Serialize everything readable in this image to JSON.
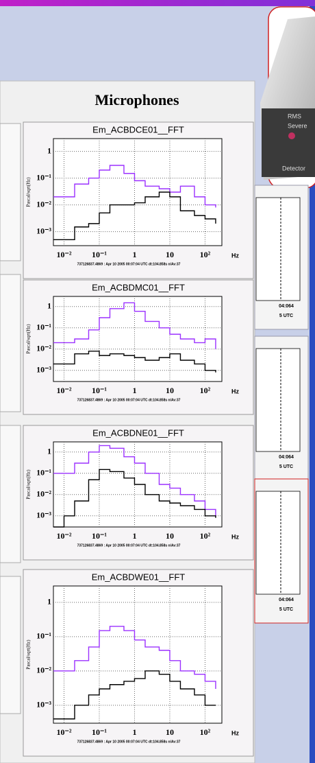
{
  "device": {
    "lines": [
      "RMS",
      "Severe",
      "Detector"
    ]
  },
  "panel": {
    "title": "Microphones"
  },
  "side_panels": [
    {
      "time": "04:064",
      "zone": "5 UTC"
    },
    {
      "time": "04:064",
      "zone": "5 UTC"
    },
    {
      "time": "04:064",
      "zone": "5 UTC"
    }
  ],
  "chart_data": [
    {
      "type": "line",
      "title": "Em_ACBDCE01__FFT",
      "ylabel": "Pascal/sqrt(Hz)",
      "xlabel": "Hz",
      "footer": "737126837.4869 : Apr 10 2005 00:07:04 UTC dt:104.858s n/Av:37",
      "log_x": true,
      "log_y": true,
      "grid": true,
      "x": [
        0.005,
        0.01,
        0.02,
        0.05,
        0.1,
        0.2,
        0.5,
        1,
        2,
        5,
        10,
        20,
        50,
        100,
        200
      ],
      "series": [
        {
          "color": "#9b30ff",
          "values": [
            0.02,
            0.02,
            0.06,
            0.1,
            0.2,
            0.3,
            0.15,
            0.08,
            0.05,
            0.04,
            0.03,
            0.05,
            0.02,
            0.01,
            0.008
          ]
        },
        {
          "color": "#000000",
          "values": [
            0.0005,
            0.0005,
            0.0015,
            0.002,
            0.005,
            0.01,
            0.01,
            0.012,
            0.02,
            0.03,
            0.02,
            0.006,
            0.004,
            0.003,
            0.002
          ]
        }
      ],
      "xlim": [
        0.005,
        300
      ],
      "ylim": [
        0.0003,
        3
      ],
      "xticks": [
        {
          "value": 0.01,
          "label": "10⁻²"
        },
        {
          "value": 0.1,
          "label": "10⁻¹"
        },
        1,
        10,
        {
          "value": 100,
          "label": "10²"
        }
      ],
      "yticks": [
        1,
        {
          "value": 0.1,
          "label": "10⁻¹"
        },
        {
          "value": 0.01,
          "label": "10⁻²"
        },
        {
          "value": 0.001,
          "label": "10⁻³"
        }
      ]
    },
    {
      "type": "line",
      "title": "Em_ACBDMC01__FFT",
      "ylabel": "Pascal/sqrt(Hz)",
      "xlabel": "Hz",
      "footer": "737126837.4869 : Apr 10 2005 00:07:04 UTC dt:104.858s n/Av:37",
      "log_x": true,
      "log_y": true,
      "grid": true,
      "x": [
        0.005,
        0.01,
        0.02,
        0.05,
        0.1,
        0.2,
        0.5,
        1,
        2,
        5,
        10,
        20,
        50,
        100,
        200
      ],
      "series": [
        {
          "color": "#9b30ff",
          "values": [
            0.02,
            0.02,
            0.03,
            0.08,
            0.3,
            0.8,
            1.5,
            0.6,
            0.2,
            0.1,
            0.05,
            0.03,
            0.02,
            0.03,
            0.01
          ]
        },
        {
          "color": "#000000",
          "values": [
            0.002,
            0.002,
            0.006,
            0.008,
            0.005,
            0.006,
            0.005,
            0.004,
            0.003,
            0.004,
            0.006,
            0.003,
            0.002,
            0.001,
            0.0008
          ]
        }
      ],
      "xlim": [
        0.005,
        300
      ],
      "ylim": [
        0.0003,
        3
      ],
      "xticks": [
        {
          "value": 0.01,
          "label": "10⁻²"
        },
        {
          "value": 0.1,
          "label": "10⁻¹"
        },
        1,
        10,
        {
          "value": 100,
          "label": "10²"
        }
      ],
      "yticks": [
        1,
        {
          "value": 0.1,
          "label": "10⁻¹"
        },
        {
          "value": 0.01,
          "label": "10⁻²"
        },
        {
          "value": 0.001,
          "label": "10⁻³"
        }
      ]
    },
    {
      "type": "line",
      "title": "Em_ACBDNE01__FFT",
      "ylabel": "Pascal/sqrt(Hz)",
      "xlabel": "Hz",
      "footer": "737126837.4869 : Apr 10 2005 00:07:04 UTC dt:104.858s n/Av:37",
      "log_x": true,
      "log_y": true,
      "grid": true,
      "x": [
        0.005,
        0.01,
        0.02,
        0.05,
        0.1,
        0.2,
        0.5,
        1,
        2,
        5,
        10,
        20,
        50,
        100,
        200
      ],
      "series": [
        {
          "color": "#9b30ff",
          "values": [
            0.1,
            0.1,
            0.3,
            1,
            2,
            1.5,
            0.6,
            0.3,
            0.1,
            0.03,
            0.02,
            0.01,
            0.005,
            0.002,
            0.001
          ]
        },
        {
          "color": "#000000",
          "values": [
            0.0003,
            0.001,
            0.005,
            0.05,
            0.15,
            0.12,
            0.06,
            0.03,
            0.01,
            0.005,
            0.004,
            0.003,
            0.002,
            0.001,
            0.0008
          ]
        }
      ],
      "xlim": [
        0.005,
        300
      ],
      "ylim": [
        0.0003,
        3
      ],
      "xticks": [
        {
          "value": 0.01,
          "label": "10⁻²"
        },
        {
          "value": 0.1,
          "label": "10⁻¹"
        },
        1,
        10,
        {
          "value": 100,
          "label": "10²"
        }
      ],
      "yticks": [
        1,
        {
          "value": 0.1,
          "label": "10⁻¹"
        },
        {
          "value": 0.01,
          "label": "10⁻²"
        },
        {
          "value": 0.001,
          "label": "10⁻³"
        }
      ]
    },
    {
      "type": "line",
      "title": "Em_ACBDWE01__FFT",
      "ylabel": "Pascal/sqrt(Hz)",
      "xlabel": "Hz",
      "footer": "737126837.4869 : Apr 10 2005 00:07:04 UTC dt:104.858s n/Av:37",
      "log_x": true,
      "log_y": true,
      "grid": true,
      "x": [
        0.005,
        0.01,
        0.02,
        0.05,
        0.1,
        0.2,
        0.5,
        1,
        2,
        5,
        10,
        20,
        50,
        100,
        200
      ],
      "series": [
        {
          "color": "#9b30ff",
          "values": [
            0.01,
            0.01,
            0.02,
            0.05,
            0.15,
            0.2,
            0.15,
            0.08,
            0.05,
            0.04,
            0.02,
            0.01,
            0.008,
            0.005,
            0.003
          ]
        },
        {
          "color": "#000000",
          "values": [
            0.0004,
            0.0004,
            0.001,
            0.002,
            0.003,
            0.004,
            0.005,
            0.006,
            0.01,
            0.008,
            0.005,
            0.003,
            0.002,
            0.001,
            0.001
          ]
        }
      ],
      "xlim": [
        0.005,
        300
      ],
      "ylim": [
        0.0003,
        3
      ],
      "xticks": [
        {
          "value": 0.01,
          "label": "10⁻²"
        },
        {
          "value": 0.1,
          "label": "10⁻¹"
        },
        1,
        10,
        {
          "value": 100,
          "label": "10²"
        }
      ],
      "yticks": [
        1,
        {
          "value": 0.1,
          "label": "10⁻¹"
        },
        {
          "value": 0.01,
          "label": "10⁻²"
        },
        {
          "value": 0.001,
          "label": "10⁻³"
        }
      ]
    }
  ]
}
